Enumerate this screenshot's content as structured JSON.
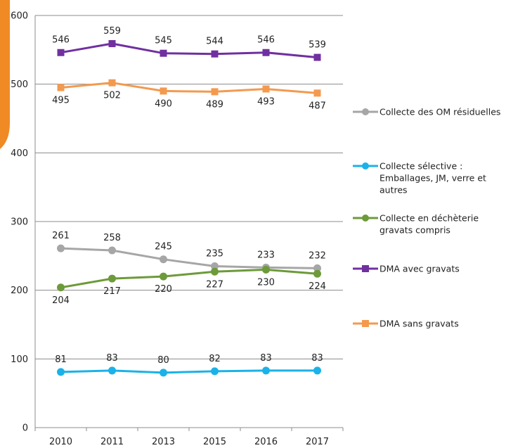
{
  "chart_data": {
    "type": "line",
    "title": "",
    "xlabel": "",
    "ylabel": "",
    "categories": [
      "2010",
      "2011",
      "2013",
      "2015",
      "2016",
      "2017"
    ],
    "ylim": [
      0,
      600
    ],
    "yticks": [
      "0",
      "100",
      "200",
      "300",
      "400",
      "500",
      "600"
    ],
    "grid": true,
    "legend_position": "right",
    "series": [
      {
        "name": "Collecte des OM résiduelles",
        "legend_lines": [
          "Collecte des OM résiduelles"
        ],
        "color": "#a6a6a6",
        "marker": "circle",
        "values": [
          261,
          258,
          245,
          235,
          233,
          232
        ],
        "labels": [
          "261",
          "258",
          "245",
          "235",
          "233",
          "232"
        ],
        "label_side": "above"
      },
      {
        "name": "Collecte sélective : Emballages, JM, verre et autres",
        "legend_lines": [
          "Collecte sélective :",
          "Emballages, JM, verre et",
          "autres"
        ],
        "color": "#1ab2e8",
        "marker": "circle",
        "values": [
          81,
          83,
          80,
          82,
          83,
          83
        ],
        "labels": [
          "81",
          "83",
          "80",
          "82",
          "83",
          "83"
        ],
        "label_side": "above"
      },
      {
        "name": "Collecte en déchèterie gravats compris",
        "legend_lines": [
          "Collecte en déchèterie",
          "gravats compris"
        ],
        "color": "#6d9a3a",
        "marker": "circle",
        "values": [
          204,
          217,
          220,
          227,
          230,
          224
        ],
        "labels": [
          "204",
          "217",
          "220",
          "227",
          "230",
          "224"
        ],
        "label_side": "below"
      },
      {
        "name": "DMA avec gravats",
        "legend_lines": [
          "DMA avec gravats"
        ],
        "color": "#7030a0",
        "marker": "square",
        "values": [
          546,
          559,
          545,
          544,
          546,
          539
        ],
        "labels": [
          "546",
          "559",
          "545",
          "544",
          "546",
          "539"
        ],
        "label_side": "above"
      },
      {
        "name": "DMA sans gravats",
        "legend_lines": [
          "DMA sans gravats"
        ],
        "color": "#f39a4f",
        "marker": "square",
        "values": [
          495,
          502,
          490,
          489,
          493,
          487
        ],
        "labels": [
          "495",
          "502",
          "490",
          "489",
          "493",
          "487"
        ],
        "label_side": "below"
      }
    ]
  }
}
